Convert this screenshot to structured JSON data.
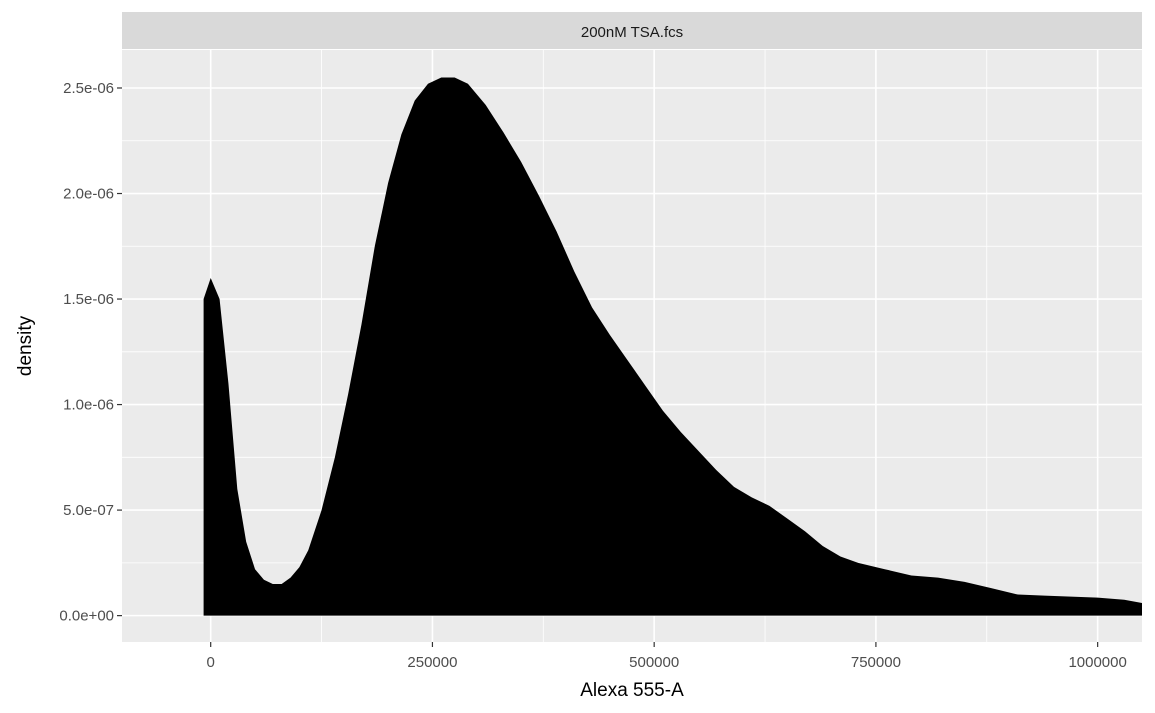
{
  "chart_data": {
    "type": "area",
    "facet_label": "200nM TSA.fcs",
    "xlabel": "Alexa 555-A",
    "ylabel": "density",
    "xlim": [
      -100000,
      1050000
    ],
    "ylim": [
      -1.25e-07,
      2.68e-06
    ],
    "x_ticks": [
      0,
      250000,
      500000,
      750000,
      1000000
    ],
    "x_tick_labels": [
      "0",
      "250000",
      "500000",
      "750000",
      "1000000"
    ],
    "y_ticks": [
      0,
      5e-07,
      1e-06,
      1.5e-06,
      2e-06,
      2.5e-06
    ],
    "y_tick_labels": [
      "0.0e+00",
      "5.0e-07",
      "1.0e-06",
      "1.5e-06",
      "2.0e-06",
      "2.5e-06"
    ],
    "grid": true,
    "fill_color": "#000000",
    "panel_color": "#ebebeb",
    "strip_color": "#d9d9d9",
    "series": [
      {
        "x": [
          -8000,
          0,
          10000,
          20000,
          30000,
          40000,
          50000,
          60000,
          70000,
          80000,
          90000,
          100000,
          110000,
          125000,
          140000,
          155000,
          170000,
          185000,
          200000,
          215000,
          230000,
          245000,
          260000,
          275000,
          290000,
          310000,
          330000,
          350000,
          370000,
          390000,
          410000,
          430000,
          450000,
          470000,
          490000,
          510000,
          530000,
          550000,
          570000,
          590000,
          610000,
          630000,
          650000,
          670000,
          690000,
          710000,
          730000,
          760000,
          790000,
          820000,
          850000,
          880000,
          910000,
          940000,
          970000,
          1000000,
          1030000,
          1050000
        ],
        "y": [
          1.5e-06,
          1.6e-06,
          1.5e-06,
          1.1e-06,
          6e-07,
          3.5e-07,
          2.2e-07,
          1.7e-07,
          1.5e-07,
          1.5e-07,
          1.8e-07,
          2.3e-07,
          3.1e-07,
          5e-07,
          7.5e-07,
          1.05e-06,
          1.38e-06,
          1.75e-06,
          2.05e-06,
          2.28e-06,
          2.44e-06,
          2.52e-06,
          2.55e-06,
          2.55e-06,
          2.52e-06,
          2.42e-06,
          2.29e-06,
          2.15e-06,
          1.99e-06,
          1.82e-06,
          1.63e-06,
          1.46e-06,
          1.33e-06,
          1.21e-06,
          1.09e-06,
          9.7e-07,
          8.7e-07,
          7.8e-07,
          6.9e-07,
          6.1e-07,
          5.6e-07,
          5.2e-07,
          4.6e-07,
          4e-07,
          3.3e-07,
          2.8e-07,
          2.5e-07,
          2.2e-07,
          1.9e-07,
          1.8e-07,
          1.6e-07,
          1.3e-07,
          1e-07,
          9.5e-08,
          9e-08,
          8.5e-08,
          7.5e-08,
          6e-08
        ]
      }
    ]
  }
}
